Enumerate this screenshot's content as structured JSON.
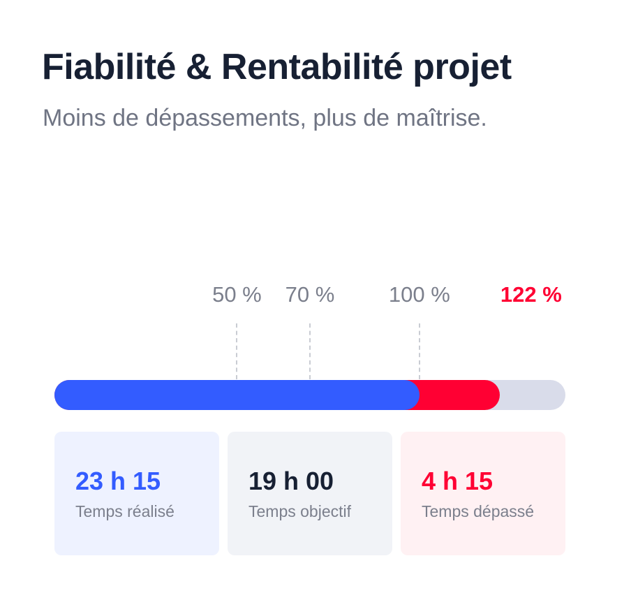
{
  "header": {
    "title": "Fiabilité & Rentabilité projet",
    "subtitle": "Moins de dépassements, plus de maîtrise."
  },
  "progress": {
    "ticks": [
      {
        "label": "50 %",
        "value": 50
      },
      {
        "label": "70 %",
        "value": 70
      },
      {
        "label": "100 %",
        "value": 100
      }
    ],
    "current_label": "122 %",
    "current_value": 122,
    "scale_max": 140,
    "colors": {
      "done": "#335cff",
      "over": "#ff0033",
      "track": "#d9dcea"
    }
  },
  "stats": [
    {
      "value": "23 h 15",
      "label": "Temps réalisé",
      "color": "#335cff"
    },
    {
      "value": "19 h 00",
      "label": "Temps objectif",
      "color": "#172033"
    },
    {
      "value": "4 h 15",
      "label": "Temps dépassé",
      "color": "#ff0033"
    }
  ]
}
